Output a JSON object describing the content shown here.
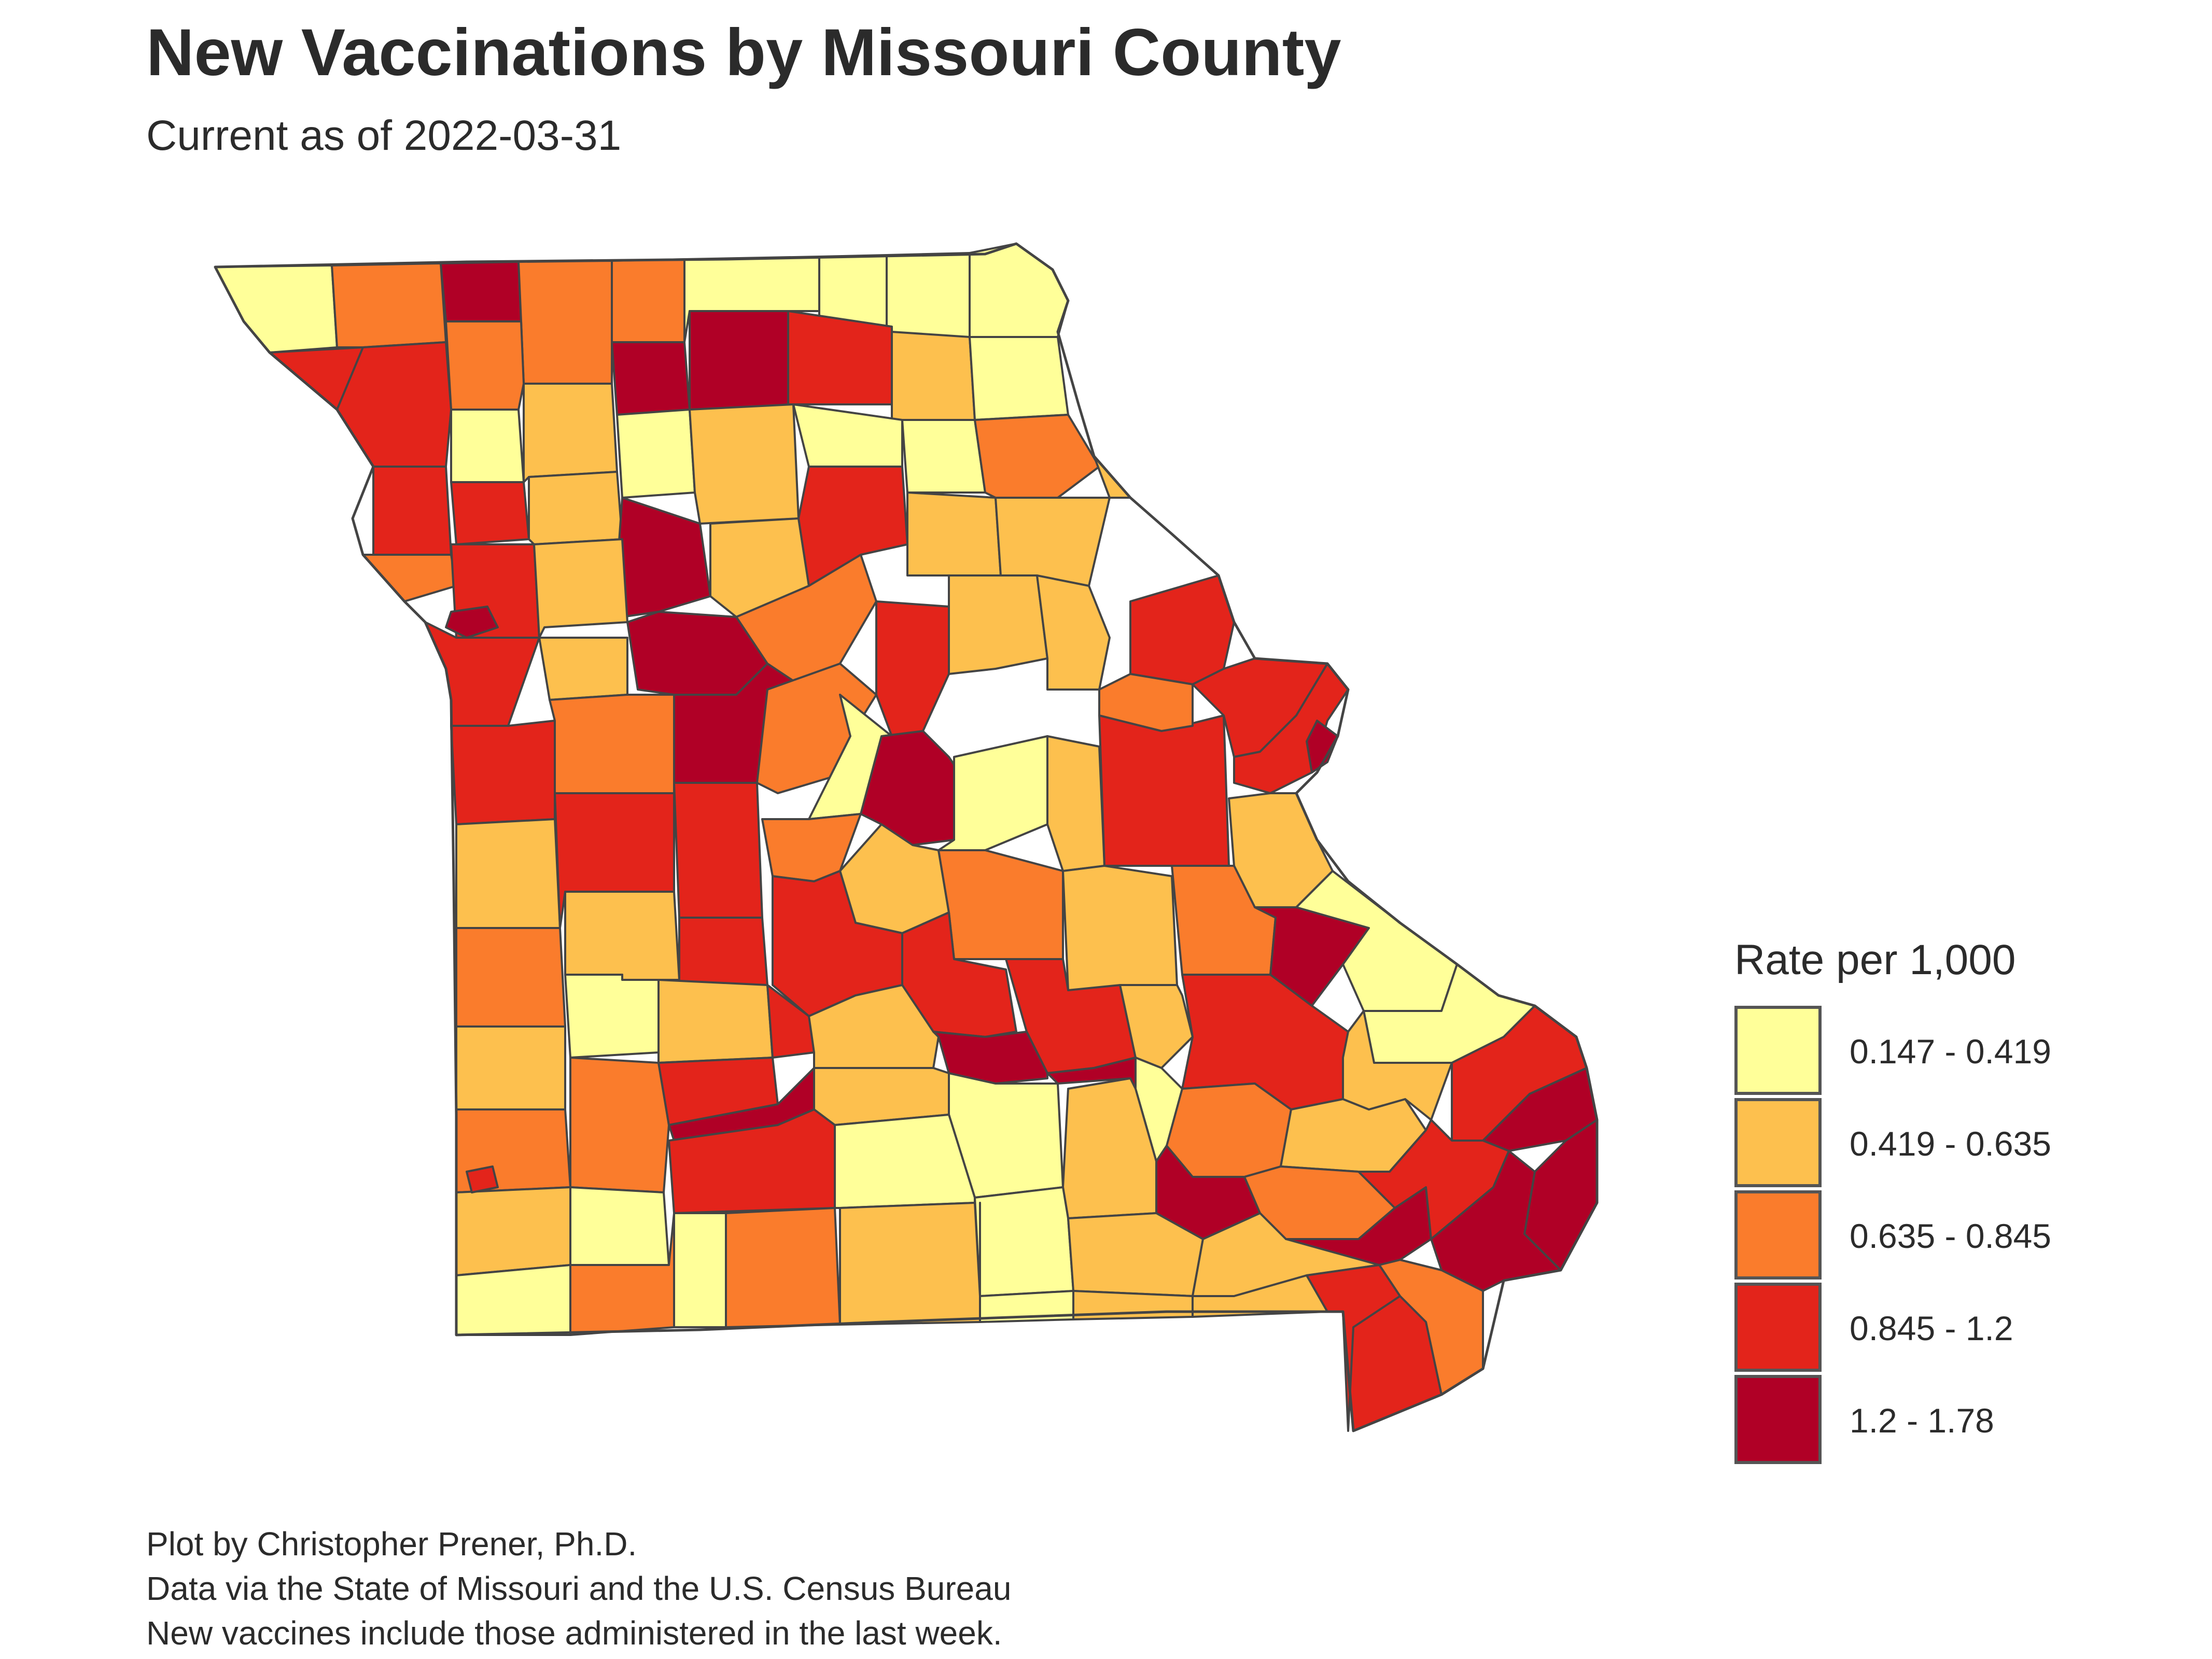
{
  "title": "New Vaccinations by Missouri County",
  "subtitle": "Current as of 2022-03-31",
  "legend": {
    "title": "Rate per 1,000",
    "bins": [
      {
        "label": "0.147 - 0.419",
        "color": "#ffff99"
      },
      {
        "label": "0.419 - 0.635",
        "color": "#fdc04e"
      },
      {
        "label": "0.635 - 0.845",
        "color": "#fa7c2c"
      },
      {
        "label": "0.845 - 1.2",
        "color": "#e3241b"
      },
      {
        "label": "1.2 - 1.78",
        "color": "#b00026"
      }
    ]
  },
  "caption": {
    "line1": "Plot by Christopher Prener, Ph.D.",
    "line2": "Data via the State of Missouri and the U.S. Census Bureau",
    "line3": "New vaccines include those administered in the last week."
  },
  "map": {
    "region": "Missouri",
    "unit": "county",
    "border_color": "#444444"
  }
}
